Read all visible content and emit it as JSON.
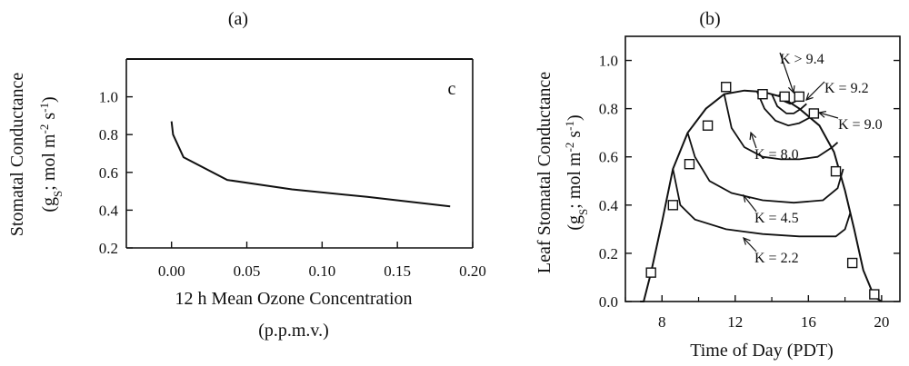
{
  "panel_labels": {
    "a": "(a)",
    "b": "(b)"
  },
  "chart_data": [
    {
      "type": "line",
      "panel": "(a)",
      "title": "",
      "annotation": "c",
      "xlabel": "12 h Mean Ozone Concentration",
      "xlabel2": "(p.p.m.v.)",
      "ylabel": "Stomatal Conductance",
      "ylabel2": "(g_S; mol m^-2 s^-1)",
      "xlim": [
        -0.03,
        0.2
      ],
      "ylim": [
        0.2,
        1.2
      ],
      "xticks": [
        "0.00",
        "0.05",
        "0.10",
        "0.15",
        "0.20"
      ],
      "yticks": [
        "0.2",
        "0.4",
        "0.6",
        "0.8",
        "1.0"
      ],
      "series": [
        {
          "x": [
            0.0,
            0.001,
            0.008,
            0.037,
            0.08,
            0.13,
            0.185
          ],
          "y": [
            0.87,
            0.8,
            0.68,
            0.56,
            0.51,
            0.47,
            0.42
          ]
        }
      ]
    },
    {
      "type": "line",
      "panel": "(b)",
      "title": "",
      "xlabel": "Time of Day (PDT)",
      "ylabel": "Leaf Stomatal Conductance",
      "ylabel2": "(g_S; mol m^-2 s^-1)",
      "xlim": [
        6,
        21
      ],
      "ylim": [
        0,
        1.1
      ],
      "xticks": [
        "8",
        "12",
        "16",
        "20"
      ],
      "yticks": [
        "0.0",
        "0.2",
        "0.4",
        "0.6",
        "0.8",
        "1.0"
      ],
      "envelope": {
        "x": [
          6.8,
          7.0,
          7.4,
          8.0,
          8.6,
          9.4,
          10.4,
          11.4,
          12.5,
          13.5,
          14.5,
          15.5,
          16.6,
          17.4,
          18.0,
          18.5,
          19.0,
          19.6,
          20.0
        ],
        "y": [
          0.0,
          0.0,
          0.12,
          0.33,
          0.55,
          0.7,
          0.8,
          0.86,
          0.875,
          0.87,
          0.85,
          0.8,
          0.73,
          0.62,
          0.46,
          0.3,
          0.13,
          0.02,
          0.0
        ]
      },
      "curves": [
        {
          "label": "K = 2.2",
          "x": [
            8.6,
            9.0,
            9.8,
            11.5,
            13.5,
            15.5,
            17.5,
            18.0,
            18.3
          ],
          "y": [
            0.55,
            0.4,
            0.34,
            0.3,
            0.28,
            0.27,
            0.27,
            0.3,
            0.37
          ]
        },
        {
          "label": "K = 4.5",
          "x": [
            9.4,
            9.8,
            10.6,
            11.8,
            13.5,
            15.2,
            16.8,
            17.6,
            17.9
          ],
          "y": [
            0.7,
            0.6,
            0.5,
            0.45,
            0.42,
            0.41,
            0.42,
            0.47,
            0.55
          ]
        },
        {
          "label": "K = 8.0",
          "x": [
            11.4,
            11.8,
            12.5,
            13.5,
            14.5,
            15.5,
            16.5,
            17.3,
            17.6
          ],
          "y": [
            0.86,
            0.72,
            0.64,
            0.6,
            0.59,
            0.59,
            0.6,
            0.64,
            0.66
          ]
        },
        {
          "label": "K = 9.0",
          "x": [
            13.2,
            13.6,
            14.2,
            14.9,
            15.5,
            16.0,
            16.5
          ],
          "y": [
            0.87,
            0.8,
            0.75,
            0.73,
            0.74,
            0.76,
            0.78
          ]
        },
        {
          "label": "K = 9.2",
          "x": [
            14.0,
            14.3,
            14.8,
            15.2,
            15.6,
            15.9
          ],
          "y": [
            0.86,
            0.81,
            0.78,
            0.78,
            0.8,
            0.82
          ]
        },
        {
          "label": "K > 9.4",
          "x": [
            14.4,
            14.7,
            15.0,
            15.3
          ],
          "y": [
            0.86,
            0.83,
            0.82,
            0.83
          ]
        }
      ],
      "observed": {
        "x": [
          7.4,
          8.6,
          9.5,
          10.5,
          11.5,
          13.5,
          14.7,
          15.5,
          16.3,
          17.5,
          18.4,
          19.6
        ],
        "y": [
          0.12,
          0.4,
          0.57,
          0.73,
          0.89,
          0.86,
          0.85,
          0.85,
          0.78,
          0.54,
          0.16,
          0.03
        ]
      }
    }
  ]
}
